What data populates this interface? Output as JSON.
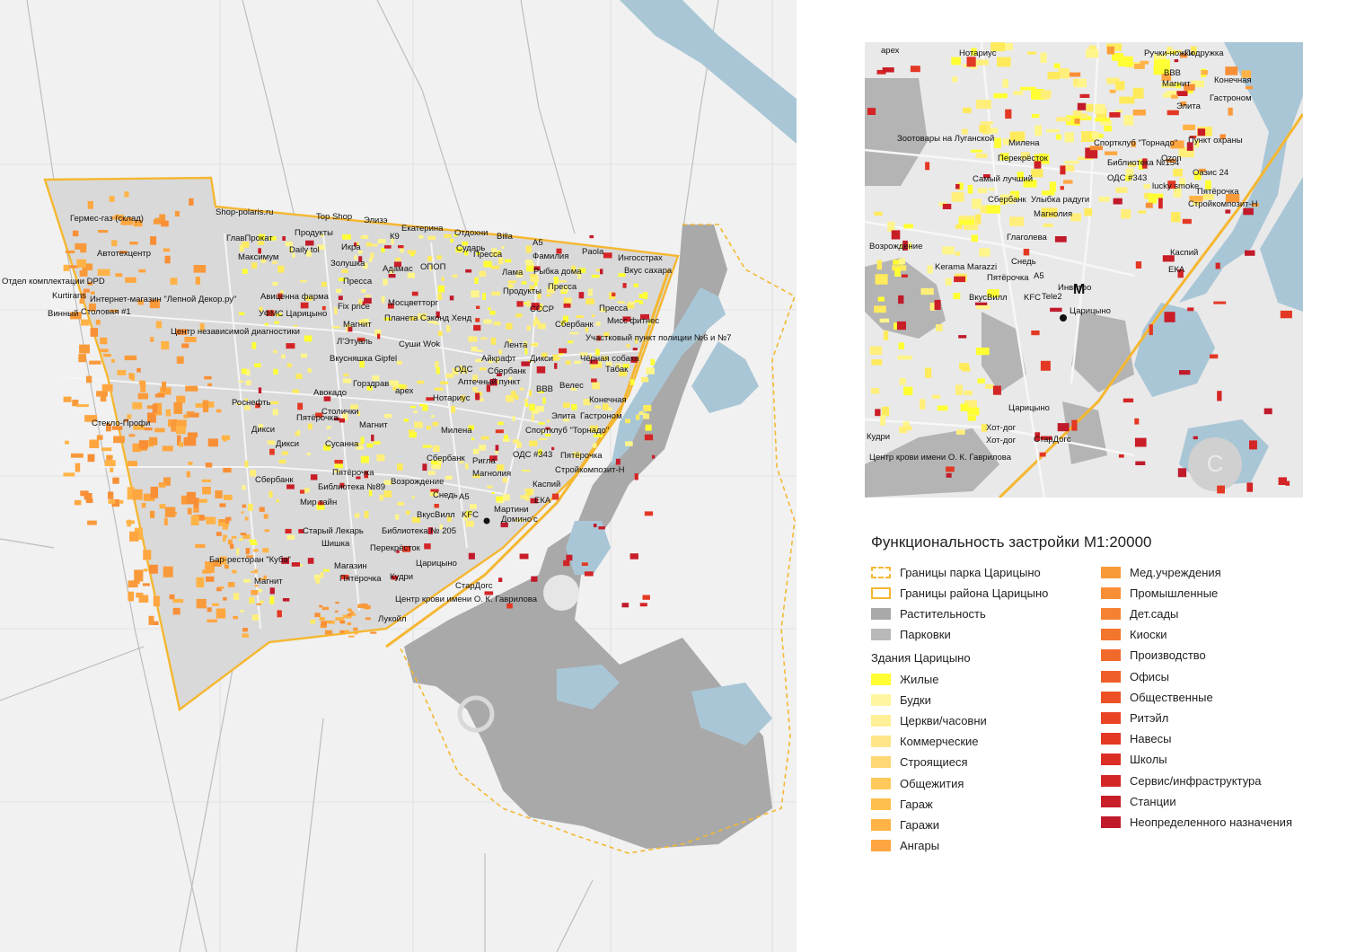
{
  "main_map": {
    "labels": [
      "Гермес-газ (склад)",
      "Shop-polaris.ru",
      "Top Shop",
      "Элизэ",
      "Екатерина",
      "Отдохни",
      "Billa",
      "ГлавПрокат",
      "Максимум",
      "Продукты",
      "Daily tol",
      "К9",
      "Сударь",
      "А5",
      "Paola",
      "Автотехцентр",
      "Икра",
      "Пресса",
      "Фамилия",
      "Ингосстрах",
      "Золушка",
      "Адамас",
      "ОПОП",
      "Лама",
      "Рыбка дома",
      "Вкус сахара",
      "Отдел комплектации DPD",
      "Kurtirans",
      "Интернет-магазин \"Лепной Декор.ру\"",
      "Авиценна фарма",
      "Пресса",
      "Продукты",
      "Пресса",
      "Винный",
      "Столовая #1",
      "УФМС Царицыно",
      "Fix price",
      "Мосцветторг",
      "СССР",
      "Пресса",
      "Центр независимой диагностики",
      "Магнит",
      "Планета Сэконд Хенд",
      "Сбербанк",
      "Мисс фитнес",
      "Л'Этуаль",
      "Суши Wok",
      "Участковый пункт полиции №6 и №7",
      "Вкусняшка Gipfel",
      "Лента",
      "Айкрафт",
      "Дикси",
      "Чёрная собака",
      "Сбербанк",
      "ОДС",
      "Табак",
      "Горздрав",
      "Авокадо",
      "арех",
      "Аптечный пункт",
      "ВВВ",
      "Велес",
      "Нотариус",
      "Конечная",
      "Роснефть",
      "Столички",
      "Пятёрочка",
      "Элита",
      "Гастроном",
      "Дикси",
      "Магнит",
      "Стекло-Профи",
      "Милена",
      "Спортклуб \"Торнадо\"",
      "Дикси",
      "Сусанна",
      "Сбербанк",
      "Ригла",
      "ОДС #343",
      "Пятёрочка",
      "Пятёрочка",
      "Магнолия",
      "Стройкомпозит-Н",
      "Сбербанк",
      "Библиотека №89",
      "Возрождение",
      "Каспий",
      "Мир тайн",
      "Снедь",
      "А5",
      "ЕКА",
      "Старый Лекарь",
      "ВкусВилл",
      "KFC",
      "Мартини",
      "Домино'с",
      "Шишка",
      "Библиотека № 205",
      "Перекрёсток",
      "Бар-ресторан \"Куба\"",
      "Магазин",
      "Царицыно",
      "Магнит",
      "Пятёрочка",
      "Кудри",
      "СтарДогс",
      "Центр крови имени О. К. Гаврилова",
      "Лукойл"
    ]
  },
  "inset_map": {
    "labels": [
      "арех",
      "Нотариус",
      "Ручки-ножки",
      "Подружка",
      "ВВВ",
      "Магнит",
      "Конечная",
      "Гастроном",
      "Элита",
      "Зоотовары на Луганской",
      "Милена",
      "Спортклуб \"Торнадо\"",
      "Пункт охраны",
      "Перекрёсток",
      "Библиотека №154",
      "Ozon",
      "Оазис 24",
      "Самый лучший",
      "ОДС #343",
      "lucky smoke",
      "Пятёрочка",
      "Сбербанк",
      "Улыбка радуги",
      "Стройкомпозит-Н",
      "Магнолия",
      "Возрождение",
      "Глаголева",
      "Каспий",
      "ЕКА",
      "Kerama Marazzi",
      "Снедь",
      "Пятёрочка",
      "А5",
      "Инвитро",
      "ВкусВилл",
      "KFC",
      "Tele2",
      "Царицыно",
      "Кудри",
      "Хот-дог",
      "Хот-дог",
      "СтарДогс",
      "Центр крови имени О. К. Гаврилова",
      "Царицыно"
    ]
  },
  "legend": {
    "title": "Функциональность застройки М1:20000",
    "subheading": "Здания Царицыно",
    "boundary_items": [
      {
        "label": "Границы парка Царицыно",
        "color": "#f5b731",
        "style": "dashed"
      },
      {
        "label": "Границы района Царицыно",
        "color": "#f5b731",
        "style": "solid"
      },
      {
        "label": "Растительность",
        "color": "#a9a9a9",
        "style": "fill"
      },
      {
        "label": "Парковки",
        "color": "#b9b9b9",
        "style": "fill"
      }
    ],
    "building_items": [
      {
        "label": "Жилые",
        "color": "#ffff33"
      },
      {
        "label": "Будки",
        "color": "#fff5a0"
      },
      {
        "label": "Церкви/часовни",
        "color": "#ffef96"
      },
      {
        "label": "Коммерческие",
        "color": "#ffe58a"
      },
      {
        "label": "Строящиеся",
        "color": "#ffd774"
      },
      {
        "label": "Общежития",
        "color": "#ffc95c"
      },
      {
        "label": "Гараж",
        "color": "#ffbf4e"
      },
      {
        "label": "Гаражи",
        "color": "#ffb347"
      },
      {
        "label": "Ангары",
        "color": "#ffa640"
      }
    ],
    "building_items_right": [
      {
        "label": "Мед.учреждения",
        "color": "#f99a3a"
      },
      {
        "label": "Промышленные",
        "color": "#f88e36"
      },
      {
        "label": "Дет.сады",
        "color": "#f58232"
      },
      {
        "label": "Киоски",
        "color": "#f3762e"
      },
      {
        "label": "Производство",
        "color": "#f26a2b"
      },
      {
        "label": "Офисы",
        "color": "#ef5e28"
      },
      {
        "label": "Общественные",
        "color": "#ec5126"
      },
      {
        "label": "Ритэйл",
        "color": "#e94424"
      },
      {
        "label": "Навесы",
        "color": "#e33823"
      },
      {
        "label": "Школы",
        "color": "#dc2e24"
      },
      {
        "label": "Сервис/инфраструктура",
        "color": "#d42526"
      },
      {
        "label": "Станции",
        "color": "#c91d28"
      },
      {
        "label": "Неопределенного назначения",
        "color": "#c01a2b"
      }
    ]
  }
}
